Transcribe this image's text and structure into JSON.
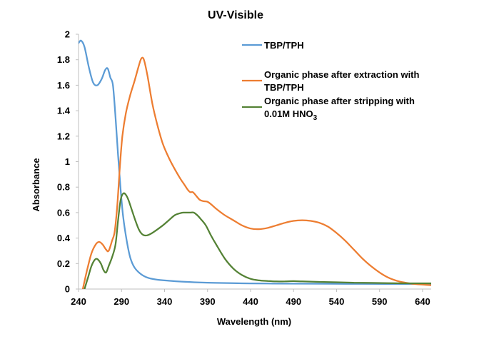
{
  "chart_data": {
    "type": "line",
    "title": "UV-Visible",
    "xlabel": "Wavelength (nm)",
    "ylabel": "Absorbance",
    "xlim": [
      240,
      650
    ],
    "ylim": [
      0,
      2
    ],
    "xticks": [
      240,
      290,
      340,
      390,
      440,
      490,
      540,
      590,
      640
    ],
    "xtick_labels": [
      "240",
      "290",
      "340",
      "390",
      "440",
      "490",
      "540",
      "590",
      "640"
    ],
    "yticks": [
      0,
      0.2,
      0.4,
      0.6,
      0.8,
      1,
      1.2,
      1.4,
      1.6,
      1.8,
      2
    ],
    "ytick_labels": [
      "0",
      "0.2",
      "0.4",
      "0.6",
      "0.8",
      "1",
      "1.2",
      "1.4",
      "1.6",
      "1.8",
      "2"
    ],
    "grid": false,
    "legend_position": "top-right",
    "series": [
      {
        "name": "TBP/TPH",
        "color": "#5b9bd5",
        "legend_lines": [
          "TBP/TPH"
        ],
        "x": [
          240,
          243,
          247,
          252,
          257,
          262,
          267,
          271,
          274,
          277,
          280,
          283,
          286,
          289,
          292,
          296,
          300,
          305,
          312,
          320,
          330,
          345,
          360,
          380,
          400,
          430,
          460,
          500,
          550,
          600,
          650
        ],
        "y": [
          1.93,
          1.95,
          1.9,
          1.74,
          1.62,
          1.6,
          1.65,
          1.72,
          1.73,
          1.66,
          1.6,
          1.35,
          1.05,
          0.78,
          0.56,
          0.38,
          0.25,
          0.17,
          0.12,
          0.09,
          0.075,
          0.065,
          0.058,
          0.052,
          0.048,
          0.045,
          0.043,
          0.042,
          0.041,
          0.04,
          0.04
        ]
      },
      {
        "name": "Organic phase after extraction with TBP/TPH",
        "color": "#ed7d31",
        "legend_lines": [
          "Organic phase after extraction with",
          "TBP/TPH"
        ],
        "x": [
          245,
          250,
          255,
          260,
          264,
          268,
          272,
          275,
          279,
          282,
          285,
          288,
          291,
          295,
          300,
          305,
          310,
          313,
          316,
          320,
          326,
          332,
          338,
          345,
          352,
          358,
          363,
          367,
          370,
          373,
          377,
          381,
          385,
          390,
          395,
          400,
          410,
          420,
          430,
          440,
          450,
          460,
          470,
          480,
          490,
          500,
          510,
          520,
          530,
          540,
          550,
          560,
          570,
          580,
          590,
          600,
          610,
          620,
          630,
          640,
          650
        ],
        "y": [
          0.0,
          0.15,
          0.28,
          0.35,
          0.37,
          0.35,
          0.31,
          0.3,
          0.38,
          0.45,
          0.65,
          0.95,
          1.2,
          1.38,
          1.52,
          1.63,
          1.75,
          1.81,
          1.8,
          1.68,
          1.45,
          1.28,
          1.14,
          1.03,
          0.94,
          0.87,
          0.82,
          0.78,
          0.76,
          0.76,
          0.73,
          0.7,
          0.69,
          0.685,
          0.66,
          0.63,
          0.58,
          0.54,
          0.5,
          0.475,
          0.47,
          0.48,
          0.5,
          0.52,
          0.535,
          0.54,
          0.535,
          0.52,
          0.49,
          0.44,
          0.38,
          0.31,
          0.24,
          0.18,
          0.13,
          0.09,
          0.065,
          0.05,
          0.04,
          0.035,
          0.03
        ]
      },
      {
        "name": "Organic phase after stripping with 0.01M HNO3",
        "color": "#548235",
        "legend_lines": [
          "Organic phase after stripping with",
          "0.01M HNO3"
        ],
        "x": [
          247,
          251,
          255,
          259,
          262,
          266,
          269,
          272,
          275,
          279,
          283,
          286,
          289,
          292,
          295,
          298,
          302,
          306,
          310,
          314,
          318,
          323,
          330,
          338,
          345,
          352,
          358,
          362,
          366,
          370,
          374,
          378,
          382,
          388,
          394,
          400,
          410,
          420,
          430,
          440,
          450,
          460,
          470,
          480,
          490,
          500,
          520,
          540,
          560,
          580,
          600,
          620,
          640,
          650
        ],
        "y": [
          0.0,
          0.09,
          0.18,
          0.23,
          0.235,
          0.2,
          0.15,
          0.13,
          0.18,
          0.25,
          0.35,
          0.54,
          0.7,
          0.75,
          0.74,
          0.7,
          0.62,
          0.54,
          0.47,
          0.43,
          0.42,
          0.43,
          0.46,
          0.5,
          0.54,
          0.58,
          0.595,
          0.6,
          0.6,
          0.6,
          0.6,
          0.58,
          0.55,
          0.5,
          0.42,
          0.35,
          0.24,
          0.16,
          0.11,
          0.08,
          0.068,
          0.063,
          0.06,
          0.06,
          0.062,
          0.06,
          0.056,
          0.053,
          0.05,
          0.048,
          0.046,
          0.045,
          0.045,
          0.045
        ]
      }
    ]
  }
}
